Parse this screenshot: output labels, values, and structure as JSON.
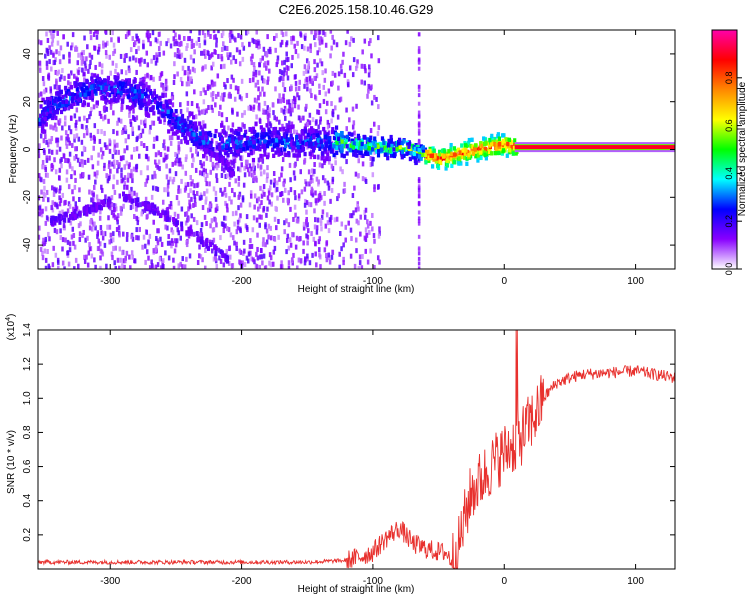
{
  "figure": {
    "title": "C2E6.2025.158.10.46.G29"
  },
  "chart_data": [
    {
      "type": "heatmap",
      "xlabel": "Height of straight line (km)",
      "ylabel": "Frequency (Hz)",
      "xlim": [
        -355,
        130
      ],
      "ylim": [
        -50,
        50
      ],
      "x_ticks": [
        -300,
        -200,
        -100,
        0,
        100
      ],
      "y_ticks": [
        -40,
        -20,
        0,
        20,
        40
      ],
      "x_tick_labels": [
        "-300",
        "-200",
        "-100",
        "0",
        "100"
      ],
      "y_tick_labels": [
        "-40",
        "-20",
        "0",
        "20",
        "40"
      ],
      "ridge": {
        "x": [
          -355,
          -345,
          -330,
          -315,
          -300,
          -290,
          -275,
          -260,
          -245,
          -230,
          -215,
          -200,
          -185,
          -170,
          -155,
          -140,
          -125,
          -110,
          -95,
          -80,
          -70,
          -60,
          -50,
          -40,
          -30,
          -20,
          -10,
          0,
          10,
          130
        ],
        "y": [
          12,
          18,
          22,
          25,
          26,
          25,
          22,
          17,
          10,
          4,
          2,
          3,
          4,
          3,
          3,
          3,
          3,
          2,
          1,
          1,
          0,
          -2,
          -4,
          -3,
          -1,
          0,
          1,
          2,
          1,
          1
        ]
      },
      "secondary_tracks": [
        {
          "x": [
            -345,
            -330,
            -315,
            -300
          ],
          "y": [
            -30,
            -28,
            -25,
            -22
          ]
        },
        {
          "x": [
            -290,
            -270,
            -250,
            -230,
            -210
          ],
          "y": [
            -20,
            -24,
            -30,
            -38,
            -46
          ]
        },
        {
          "x": [
            -240,
            -225,
            -212,
            -205
          ],
          "y": [
            6,
            0,
            -6,
            -12
          ]
        }
      ],
      "colorbar": {
        "label": "Normalized spectral amplitude",
        "range": [
          0,
          1
        ],
        "ticks": [
          0.0,
          0.2,
          0.4,
          0.6,
          0.8
        ],
        "tick_labels": [
          "0.0",
          "0.2",
          "0.4",
          "0.6",
          "0.8"
        ],
        "colors": [
          "#ffffff",
          "#8800ff",
          "#0000ff",
          "#00ffff",
          "#00ff00",
          "#ffff00",
          "#ff8800",
          "#ff0000",
          "#ff00aa"
        ]
      }
    },
    {
      "type": "line",
      "xlabel": "Height of straight line (km)",
      "ylabel": "SNR (10 * v/v)",
      "exponent_label": "(x10",
      "exponent_power": "4",
      "exponent_close": ")",
      "xlim": [
        -355,
        130
      ],
      "ylim": [
        0,
        1.4
      ],
      "x_ticks": [
        -300,
        -200,
        -100,
        0,
        100
      ],
      "y_ticks": [
        0.2,
        0.4,
        0.6,
        0.8,
        1.0,
        1.2,
        1.4
      ],
      "x_tick_labels": [
        "-300",
        "-200",
        "-100",
        "0",
        "100"
      ],
      "y_tick_labels": [
        "0.2",
        "0.4",
        "0.6",
        "0.8",
        "1.0",
        "1.2",
        "1.4"
      ],
      "color": "#e8312e",
      "series": [
        {
          "x": [
            -355,
            -300,
            -250,
            -200,
            -150,
            -120,
            -110,
            -100,
            -90,
            -80,
            -75,
            -70,
            -60,
            -50,
            -45,
            -40,
            -35,
            -30,
            -25,
            -20,
            -15,
            -10,
            -5,
            0,
            5,
            10,
            15,
            20,
            25,
            30,
            35,
            40,
            50,
            60,
            80,
            100,
            115,
            130
          ],
          "values": [
            0.04,
            0.04,
            0.04,
            0.04,
            0.04,
            0.05,
            0.07,
            0.1,
            0.18,
            0.24,
            0.2,
            0.15,
            0.12,
            0.1,
            0.1,
            0.05,
            0.12,
            0.3,
            0.45,
            0.5,
            0.55,
            0.6,
            0.65,
            0.68,
            0.72,
            0.75,
            0.8,
            0.86,
            0.92,
            1.0,
            1.05,
            1.09,
            1.12,
            1.14,
            1.15,
            1.16,
            1.14,
            1.12
          ]
        }
      ]
    }
  ]
}
